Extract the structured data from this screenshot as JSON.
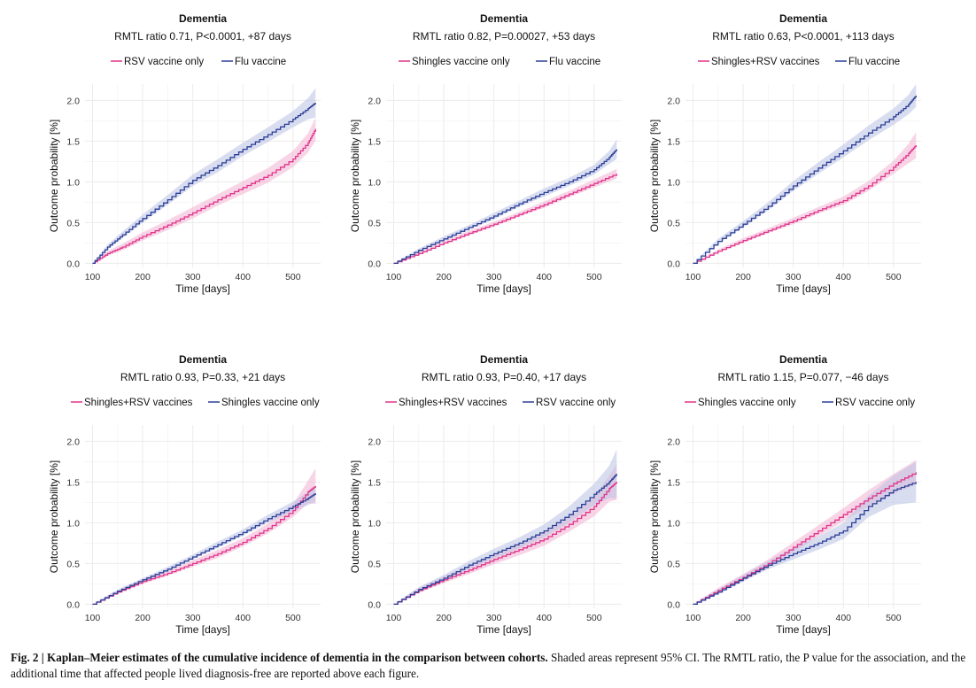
{
  "colors": {
    "pink": "#e0338a",
    "blue": "#2b3f96",
    "pink_ci": "#f3b3d2",
    "blue_ci": "#b9c1e4",
    "grid": "#ebebeb"
  },
  "chart_data": [
    {
      "type": "line",
      "title": "Dementia",
      "subtitle": "RMTL ratio 0.71, P<0.0001, +87 days",
      "xlabel": "Time [days]",
      "ylabel": "Outcome probability [%]",
      "xlim": [
        85,
        555
      ],
      "ylim": [
        -0.05,
        2.2
      ],
      "xticks": [
        100,
        200,
        300,
        400,
        500
      ],
      "yticks": [
        0.0,
        0.5,
        1.0,
        1.5,
        2.0
      ],
      "grid": true,
      "legend_position": "top",
      "series": [
        {
          "name": "RSV vaccine only",
          "color": "pink",
          "x": [
            100,
            130,
            160,
            200,
            250,
            300,
            350,
            400,
            450,
            500,
            530,
            545
          ],
          "y": [
            0.0,
            0.12,
            0.2,
            0.33,
            0.47,
            0.62,
            0.78,
            0.93,
            1.08,
            1.28,
            1.48,
            1.65
          ],
          "ci_width": [
            0.0,
            0.03,
            0.04,
            0.05,
            0.06,
            0.07,
            0.07,
            0.08,
            0.09,
            0.1,
            0.12,
            0.14
          ]
        },
        {
          "name": "Flu vaccine",
          "color": "blue",
          "x": [
            100,
            130,
            160,
            200,
            250,
            300,
            350,
            400,
            450,
            500,
            530,
            545
          ],
          "y": [
            0.0,
            0.2,
            0.35,
            0.55,
            0.78,
            1.02,
            1.2,
            1.4,
            1.58,
            1.77,
            1.9,
            1.97
          ],
          "ci_width": [
            0.0,
            0.03,
            0.04,
            0.05,
            0.06,
            0.07,
            0.08,
            0.08,
            0.09,
            0.1,
            0.13,
            0.18
          ]
        }
      ]
    },
    {
      "type": "line",
      "title": "Dementia",
      "subtitle": "RMTL ratio 0.82, P=0.00027, +53 days",
      "xlabel": "Time [days]",
      "ylabel": "Outcome probability [%]",
      "xlim": [
        85,
        555
      ],
      "ylim": [
        -0.05,
        2.2
      ],
      "xticks": [
        100,
        200,
        300,
        400,
        500
      ],
      "yticks": [
        0.0,
        0.5,
        1.0,
        1.5,
        2.0
      ],
      "grid": true,
      "legend_position": "top",
      "series": [
        {
          "name": "Shingles vaccine only",
          "color": "pink",
          "x": [
            100,
            150,
            200,
            250,
            300,
            350,
            400,
            450,
            500,
            545
          ],
          "y": [
            0.0,
            0.12,
            0.25,
            0.37,
            0.48,
            0.6,
            0.72,
            0.85,
            0.98,
            1.1
          ],
          "ci_width": [
            0.0,
            0.02,
            0.02,
            0.03,
            0.03,
            0.03,
            0.04,
            0.04,
            0.05,
            0.06
          ]
        },
        {
          "name": "Flu vaccine",
          "color": "blue",
          "x": [
            100,
            150,
            200,
            250,
            300,
            350,
            400,
            450,
            500,
            530,
            545
          ],
          "y": [
            0.0,
            0.16,
            0.3,
            0.44,
            0.58,
            0.73,
            0.87,
            1.0,
            1.15,
            1.3,
            1.4
          ],
          "ci_width": [
            0.0,
            0.02,
            0.03,
            0.03,
            0.04,
            0.04,
            0.05,
            0.05,
            0.06,
            0.08,
            0.12
          ]
        }
      ]
    },
    {
      "type": "line",
      "title": "Dementia",
      "subtitle": "RMTL ratio 0.63, P<0.0001, +113 days",
      "xlabel": "Time [days]",
      "ylabel": "Outcome probability [%]",
      "xlim": [
        85,
        555
      ],
      "ylim": [
        -0.05,
        2.2
      ],
      "xticks": [
        100,
        200,
        300,
        400,
        500
      ],
      "yticks": [
        0.0,
        0.5,
        1.0,
        1.5,
        2.0
      ],
      "grid": true,
      "legend_position": "top",
      "series": [
        {
          "name": "Shingles+RSV vaccines",
          "color": "pink",
          "x": [
            100,
            150,
            200,
            250,
            300,
            350,
            400,
            450,
            500,
            530,
            545
          ],
          "y": [
            0.0,
            0.15,
            0.28,
            0.4,
            0.52,
            0.65,
            0.77,
            0.95,
            1.18,
            1.35,
            1.45
          ],
          "ci_width": [
            0.0,
            0.02,
            0.03,
            0.03,
            0.04,
            0.04,
            0.05,
            0.06,
            0.08,
            0.12,
            0.16
          ]
        },
        {
          "name": "Flu vaccine",
          "color": "blue",
          "x": [
            100,
            150,
            200,
            250,
            300,
            350,
            400,
            450,
            500,
            530,
            545
          ],
          "y": [
            0.0,
            0.27,
            0.48,
            0.7,
            0.95,
            1.17,
            1.38,
            1.6,
            1.8,
            1.95,
            2.06
          ],
          "ci_width": [
            0.0,
            0.03,
            0.04,
            0.05,
            0.06,
            0.07,
            0.08,
            0.09,
            0.1,
            0.12,
            0.14
          ]
        }
      ]
    },
    {
      "type": "line",
      "title": "Dementia",
      "subtitle": "RMTL ratio 0.93, P=0.33, +21 days",
      "xlabel": "Time [days]",
      "ylabel": "Outcome probability [%]",
      "xlim": [
        85,
        555
      ],
      "ylim": [
        -0.05,
        2.2
      ],
      "xticks": [
        100,
        200,
        300,
        400,
        500
      ],
      "yticks": [
        0.0,
        0.5,
        1.0,
        1.5,
        2.0
      ],
      "grid": true,
      "legend_position": "top",
      "series": [
        {
          "name": "Shingles+RSV vaccines",
          "color": "pink",
          "x": [
            100,
            150,
            200,
            250,
            300,
            350,
            400,
            450,
            500,
            530,
            545
          ],
          "y": [
            0.0,
            0.15,
            0.28,
            0.38,
            0.5,
            0.62,
            0.76,
            0.93,
            1.15,
            1.38,
            1.45
          ],
          "ci_width": [
            0.0,
            0.02,
            0.03,
            0.03,
            0.04,
            0.05,
            0.05,
            0.06,
            0.08,
            0.14,
            0.22
          ]
        },
        {
          "name": "Shingles vaccine only",
          "color": "blue",
          "x": [
            100,
            150,
            200,
            250,
            300,
            350,
            400,
            450,
            500,
            530,
            545
          ],
          "y": [
            0.0,
            0.16,
            0.3,
            0.43,
            0.58,
            0.73,
            0.88,
            1.05,
            1.2,
            1.3,
            1.36
          ],
          "ci_width": [
            0.0,
            0.02,
            0.02,
            0.03,
            0.03,
            0.04,
            0.04,
            0.05,
            0.06,
            0.08,
            0.1
          ]
        }
      ]
    },
    {
      "type": "line",
      "title": "Dementia",
      "subtitle": "RMTL ratio 0.93, P=0.40, +17 days",
      "xlabel": "Time [days]",
      "ylabel": "Outcome probability [%]",
      "xlim": [
        85,
        555
      ],
      "ylim": [
        -0.05,
        2.2
      ],
      "xticks": [
        100,
        200,
        300,
        400,
        500
      ],
      "yticks": [
        0.0,
        0.5,
        1.0,
        1.5,
        2.0
      ],
      "grid": true,
      "legend_position": "top",
      "series": [
        {
          "name": "Shingles+RSV vaccines",
          "color": "pink",
          "x": [
            100,
            150,
            200,
            250,
            300,
            350,
            400,
            450,
            500,
            530,
            545
          ],
          "y": [
            0.0,
            0.17,
            0.3,
            0.42,
            0.55,
            0.67,
            0.8,
            0.98,
            1.2,
            1.42,
            1.5
          ],
          "ci_width": [
            0.0,
            0.03,
            0.04,
            0.05,
            0.06,
            0.07,
            0.08,
            0.09,
            0.12,
            0.16,
            0.22
          ]
        },
        {
          "name": "RSV vaccine only",
          "color": "blue",
          "x": [
            100,
            150,
            200,
            250,
            300,
            350,
            400,
            450,
            500,
            530,
            545
          ],
          "y": [
            0.0,
            0.18,
            0.32,
            0.48,
            0.62,
            0.75,
            0.9,
            1.1,
            1.35,
            1.5,
            1.6
          ],
          "ci_width": [
            0.0,
            0.03,
            0.04,
            0.05,
            0.06,
            0.07,
            0.08,
            0.1,
            0.13,
            0.2,
            0.3
          ]
        }
      ]
    },
    {
      "type": "line",
      "title": "Dementia",
      "subtitle": "RMTL ratio 1.15, P=0.077, −46 days",
      "xlabel": "Time [days]",
      "ylabel": "Outcome probability [%]",
      "xlim": [
        85,
        555
      ],
      "ylim": [
        -0.05,
        2.2
      ],
      "xticks": [
        100,
        200,
        300,
        400,
        500
      ],
      "yticks": [
        0.0,
        0.5,
        1.0,
        1.5,
        2.0
      ],
      "grid": true,
      "legend_position": "top",
      "series": [
        {
          "name": "Shingles vaccine only",
          "color": "pink",
          "x": [
            100,
            150,
            200,
            250,
            300,
            350,
            400,
            450,
            500,
            545
          ],
          "y": [
            0.0,
            0.17,
            0.33,
            0.5,
            0.7,
            0.9,
            1.1,
            1.3,
            1.48,
            1.62
          ],
          "ci_width": [
            0.0,
            0.03,
            0.04,
            0.05,
            0.06,
            0.07,
            0.08,
            0.1,
            0.12,
            0.15
          ]
        },
        {
          "name": "RSV vaccine only",
          "color": "blue",
          "x": [
            100,
            150,
            200,
            250,
            300,
            350,
            400,
            450,
            500,
            545
          ],
          "y": [
            0.0,
            0.15,
            0.32,
            0.48,
            0.62,
            0.75,
            0.9,
            1.2,
            1.4,
            1.5
          ],
          "ci_width": [
            0.0,
            0.03,
            0.04,
            0.05,
            0.07,
            0.08,
            0.1,
            0.13,
            0.18,
            0.25
          ]
        }
      ]
    }
  ],
  "caption": {
    "bold": "Fig. 2 | Kaplan–Meier estimates of the cumulative incidence of dementia in the comparison between cohorts.",
    "text": " Shaded areas represent 95% CI. The RMTL ratio, the P value for the association, and the additional time that affected people lived diagnosis-free are reported above each figure."
  }
}
